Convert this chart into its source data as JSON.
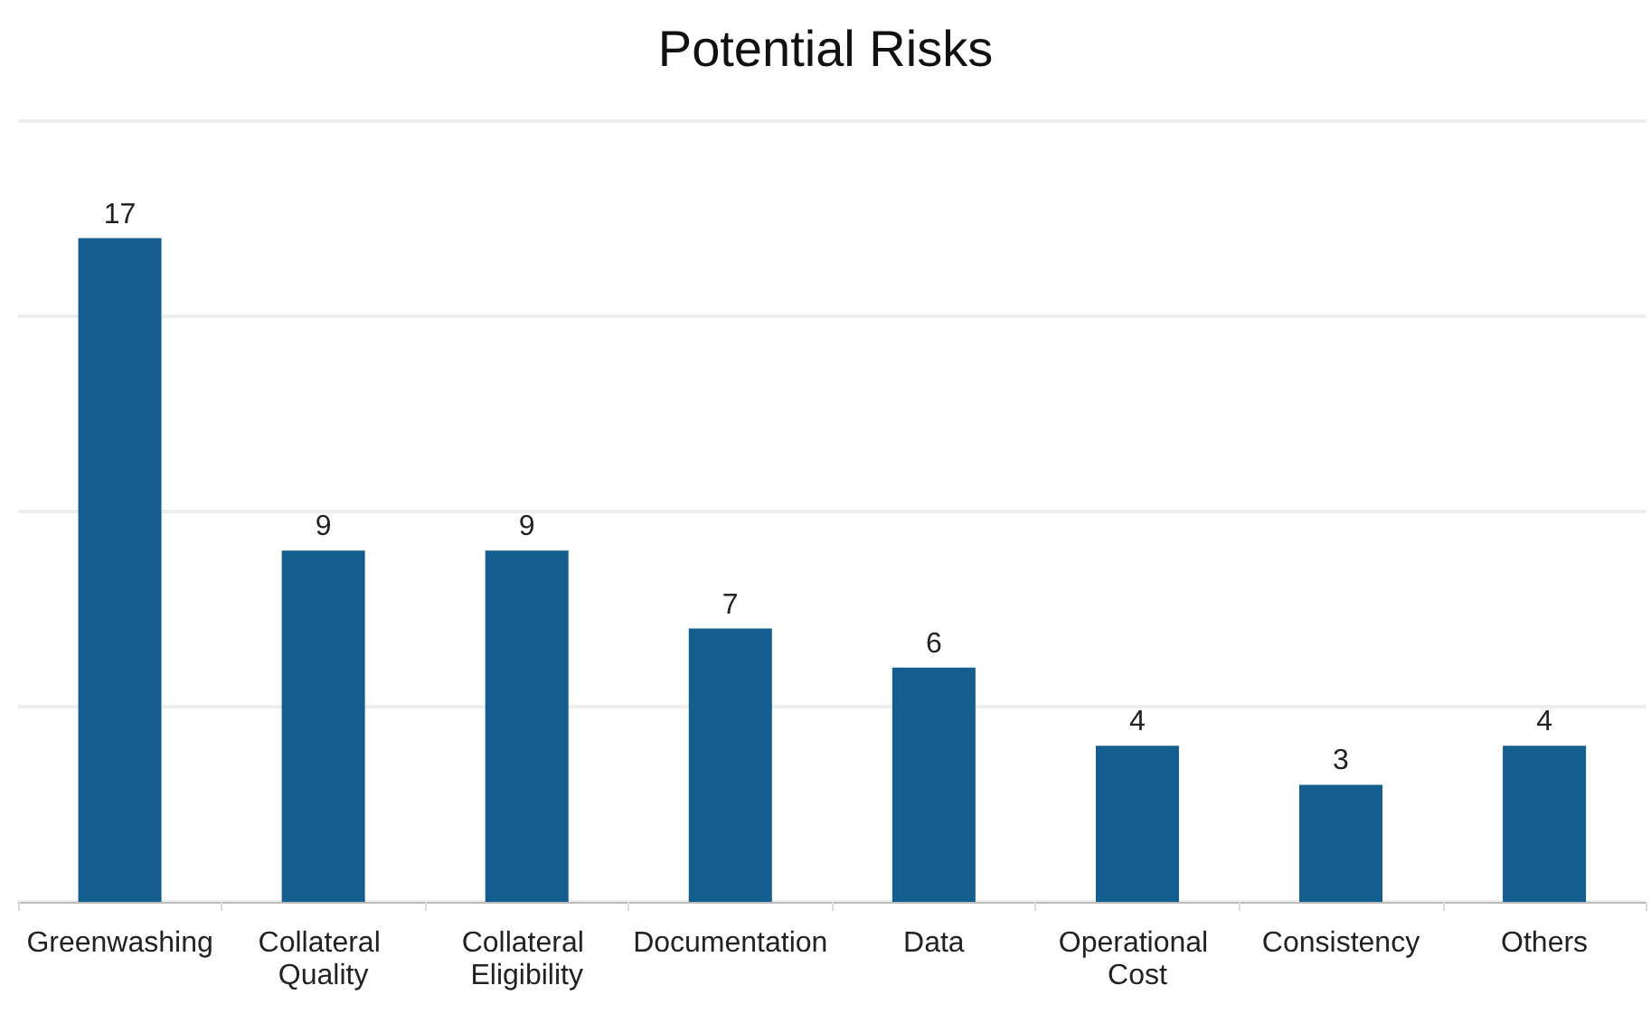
{
  "chart_data": {
    "type": "bar",
    "title": "Potential Risks",
    "categories": [
      "Greenwashing",
      "Collateral Quality",
      "Collateral Eligibility",
      "Documentation",
      "Data",
      "Operational Cost",
      "Consistency",
      "Others"
    ],
    "values": [
      17,
      9,
      9,
      7,
      6,
      4,
      3,
      4
    ],
    "color": "#135d8f",
    "ylim": [
      0,
      20
    ],
    "yticks": [
      {
        "value": 0,
        "label": null
      },
      {
        "value": 5,
        "label": null
      },
      {
        "value": 10,
        "label": null
      },
      {
        "value": 15,
        "label": null
      },
      {
        "value": 20,
        "label": null
      }
    ],
    "grid": true,
    "tick_labels": "x",
    "data_labels": true
  }
}
